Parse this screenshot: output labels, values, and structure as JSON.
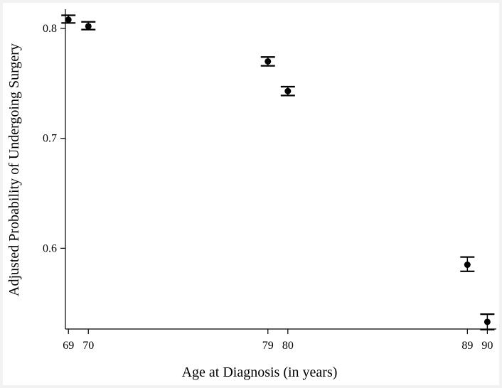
{
  "chart_data": {
    "type": "scatter",
    "title": "",
    "xlabel": "Age at Diagnosis (in years)",
    "ylabel": "Adjusted Probability of Undergoing Surgery",
    "x_ticks": [
      "69",
      "70",
      "79",
      "80",
      "89",
      "90"
    ],
    "y_ticks": [
      "0.6",
      "0.7",
      "0.8"
    ],
    "xlim": [
      68.85,
      90.45
    ],
    "ylim": [
      0.5265,
      0.8175
    ],
    "grid": false,
    "legend": "none",
    "colors": {
      "marker": "#000000",
      "axis": "#000000",
      "background": "#ffffff"
    },
    "points": [
      {
        "x": 69,
        "y": 0.808,
        "lower": 0.805,
        "upper": 0.812
      },
      {
        "x": 70,
        "y": 0.802,
        "lower": 0.799,
        "upper": 0.806
      },
      {
        "x": 79,
        "y": 0.77,
        "lower": 0.766,
        "upper": 0.774
      },
      {
        "x": 80,
        "y": 0.743,
        "lower": 0.739,
        "upper": 0.747
      },
      {
        "x": 89,
        "y": 0.585,
        "lower": 0.579,
        "upper": 0.592
      },
      {
        "x": 90,
        "y": 0.533,
        "lower": 0.526,
        "upper": 0.54
      }
    ]
  }
}
